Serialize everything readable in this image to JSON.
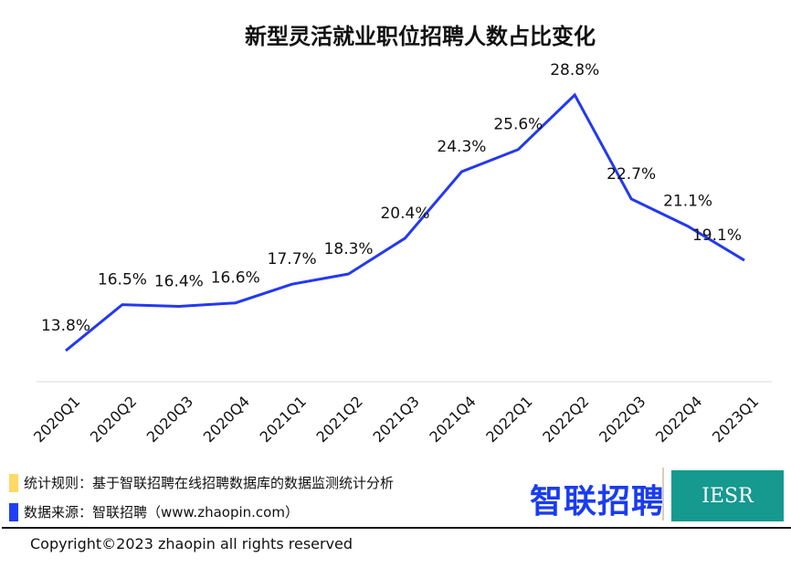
{
  "chart_data": {
    "type": "line",
    "title": "新型灵活就业职位招聘人数占比变化",
    "categories": [
      "2020Q1",
      "2020Q2",
      "2020Q3",
      "2020Q4",
      "2021Q1",
      "2021Q2",
      "2021Q3",
      "2021Q4",
      "2022Q1",
      "2022Q2",
      "2022Q3",
      "2022Q4",
      "2023Q1"
    ],
    "values": [
      13.8,
      16.5,
      16.4,
      16.6,
      17.7,
      18.3,
      20.4,
      24.3,
      25.6,
      28.8,
      22.7,
      21.1,
      19.1
    ],
    "data_labels": [
      "13.8%",
      "16.5%",
      "16.4%",
      "16.6%",
      "17.7%",
      "18.3%",
      "20.4%",
      "24.3%",
      "25.6%",
      "28.8%",
      "22.7%",
      "21.1%",
      "19.1%"
    ],
    "unit": "%",
    "grid": false,
    "line_color": "#2339f0"
  },
  "notes": {
    "rule": "统计规则：基于智联招聘在线招聘数据库的数据监测统计分析",
    "rule_color": "#ffd966",
    "source": "数据来源：智联招聘（www.zhaopin.com）",
    "source_color": "#1f3ff5"
  },
  "logos": {
    "zhaopin": "智联招聘",
    "iesr": "IESR"
  },
  "copyright": "Copyright©2023 zhaopin all rights reserved"
}
